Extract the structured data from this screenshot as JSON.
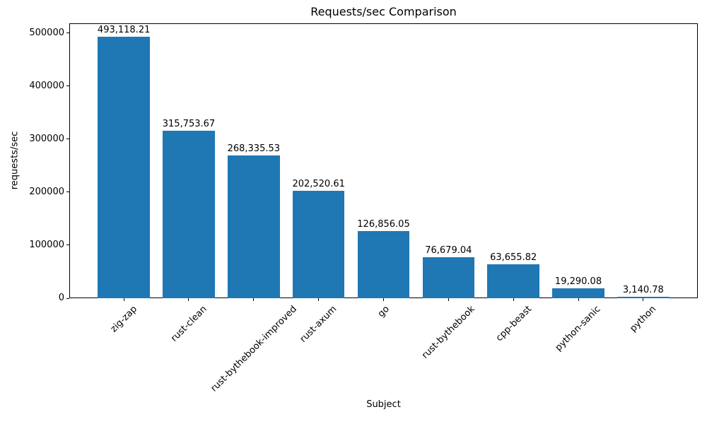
{
  "chart_data": {
    "type": "bar",
    "title": "Requests/sec Comparison",
    "xlabel": "Subject",
    "ylabel": "requests/sec",
    "categories": [
      "zig-zap",
      "rust-clean",
      "rust-bythebook-improved",
      "rust-axum",
      "go",
      "rust-bythebook",
      "cpp-beast",
      "python-sanic",
      "python"
    ],
    "values": [
      493118.21,
      315753.67,
      268335.53,
      202520.61,
      126856.05,
      76679.04,
      63655.82,
      19290.08,
      3140.78
    ],
    "value_labels": [
      "493,118.21",
      "315,753.67",
      "268,335.53",
      "202,520.61",
      "126,856.05",
      "76,679.04",
      "63,655.82",
      "19,290.08",
      "3,140.78"
    ],
    "bar_color": "#1f77b4",
    "ylim": [
      0,
      518000
    ],
    "yticks": [
      0,
      100000,
      200000,
      300000,
      400000,
      500000
    ],
    "ytick_labels": [
      "0",
      "100000",
      "200000",
      "300000",
      "400000",
      "500000"
    ],
    "grid": false,
    "legend_position": "none",
    "bar_width_fraction": 0.8,
    "x_tick_rotation_deg": 45
  }
}
